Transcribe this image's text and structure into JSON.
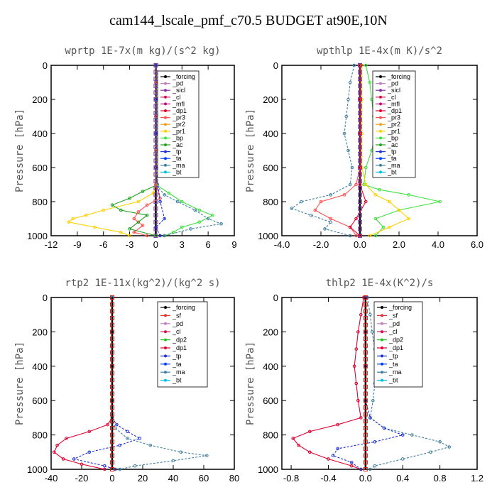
{
  "page_title": "cam144_lscale_pmf_c70.5  BUDGET at90E,10N",
  "colors": {
    "forcing": "#000000",
    "pd": "#c080c0",
    "sicl": "#8030a0",
    "sf": "#e03030",
    "cl": "#d01050",
    "mfl": "#c01080",
    "dp1": "#e00030",
    "dp2": "#20c020",
    "pr3": "#ff5050",
    "pr2": "#f0a020",
    "pr1": "#ffd000",
    "bp": "#40e040",
    "ac": "#20a020",
    "tp": "#2030d0",
    "ta": "#0040ff",
    "ma": "#4080a0",
    "bt": "#00c0e0"
  },
  "chart_data": [
    {
      "type": "line",
      "title": "wprtp   1E-7x(m kg)/(s^2 kg)",
      "ylabel": "Pressure [hPa]",
      "xlim": [
        -12,
        9
      ],
      "xticks": [
        -12,
        -9,
        -6,
        -3,
        0,
        3,
        6,
        9
      ],
      "xtick_labels": [
        "-12",
        "-9",
        "-6",
        "-3",
        "0",
        "3",
        "6",
        "9"
      ],
      "ylim": [
        1000,
        0
      ],
      "yticks": [
        0,
        200,
        400,
        600,
        800,
        1000
      ],
      "ytick_labels": [
        "0",
        "200",
        "400",
        "600",
        "800",
        "1000"
      ],
      "legend": [
        "_forcing",
        "_pd",
        "_sicl",
        "_cl",
        "_mfl",
        "_dp1",
        "_pr3",
        "_pr2",
        "_pr1",
        "_bp",
        "_ac",
        "_tp",
        "_ta",
        "_ma",
        "_bt"
      ],
      "series": [
        {
          "name": "_forcing",
          "key": "forcing",
          "p": [
            0,
            1000
          ],
          "x": [
            0,
            0
          ]
        },
        {
          "name": "_pr1",
          "key": "pr1",
          "p": [
            0,
            100,
            200,
            300,
            400,
            500,
            600,
            700,
            750,
            800,
            850,
            880,
            900,
            920,
            950,
            980,
            1000
          ],
          "x": [
            0,
            0,
            0,
            0,
            0,
            0,
            0,
            0,
            -0.3,
            -2,
            -6,
            -8,
            -9.5,
            -10,
            -7,
            -4,
            -3
          ]
        },
        {
          "name": "_ac",
          "key": "ac",
          "p": [
            0,
            100,
            200,
            300,
            400,
            500,
            600,
            700,
            740,
            780,
            820,
            850,
            880,
            920,
            960,
            1000
          ],
          "x": [
            0,
            0,
            0,
            0,
            0,
            0,
            0,
            0.2,
            -1.5,
            -3,
            -5,
            -4,
            -1,
            -2,
            -3,
            0
          ]
        },
        {
          "name": "_bp",
          "key": "bp",
          "p": [
            0,
            100,
            200,
            300,
            400,
            500,
            600,
            700,
            750,
            800,
            850,
            880,
            920,
            950,
            980,
            1000
          ],
          "x": [
            0,
            0,
            0,
            0,
            0,
            0,
            0,
            0,
            1.5,
            3,
            5,
            6.5,
            5,
            3,
            2,
            1
          ]
        },
        {
          "name": "_ma",
          "key": "ma",
          "p": [
            0,
            100,
            200,
            300,
            400,
            500,
            600,
            700,
            760,
            800,
            850,
            900,
            930,
            960,
            1000
          ],
          "x": [
            0,
            0,
            0,
            0,
            0,
            0,
            0,
            0,
            1,
            2.5,
            4.5,
            6,
            7.5,
            4,
            1
          ]
        },
        {
          "name": "_pr3",
          "key": "pr3",
          "p": [
            0,
            100,
            200,
            300,
            400,
            500,
            600,
            700,
            780,
            820,
            860,
            900,
            940,
            980,
            1000
          ],
          "x": [
            0,
            0,
            0,
            0,
            0,
            0,
            0,
            0,
            0.5,
            -1,
            -2,
            -2.5,
            -1.5,
            -2.5,
            -1
          ]
        },
        {
          "name": "_tp",
          "key": "tp",
          "p": [
            0,
            200,
            400,
            600,
            800,
            900,
            950,
            1000
          ],
          "x": [
            0,
            0,
            0,
            0,
            0.5,
            1,
            0,
            0.5
          ]
        }
      ]
    },
    {
      "type": "line",
      "title": "wpthlp   1E-4x(m K)/s^2",
      "ylabel": "Pressure [hPa]",
      "xlim": [
        -4.0,
        6.0
      ],
      "xticks": [
        -4.0,
        -2.0,
        0.0,
        2.0,
        4.0,
        6.0
      ],
      "xtick_labels": [
        "-4.0",
        "-2.0",
        "0.0",
        "2.0",
        "4.0",
        "6.0"
      ],
      "ylim": [
        1000,
        0
      ],
      "yticks": [
        0,
        200,
        400,
        600,
        800,
        1000
      ],
      "ytick_labels": [
        "0",
        "200",
        "400",
        "600",
        "800",
        "1000"
      ],
      "legend": [
        "_forcing",
        "_pd",
        "_sicl",
        "_cl",
        "_mfl",
        "_dp1",
        "_pr3",
        "_pr2",
        "_pr1",
        "_bp",
        "_ac",
        "_tp",
        "_ta",
        "_ma",
        "_bt"
      ],
      "series": [
        {
          "name": "_forcing",
          "key": "forcing",
          "p": [
            0,
            1000
          ],
          "x": [
            0,
            0
          ]
        },
        {
          "name": "_bp",
          "key": "bp",
          "p": [
            0,
            100,
            200,
            300,
            400,
            500,
            600,
            700,
            730,
            760,
            800,
            850,
            900,
            950,
            1000
          ],
          "x": [
            0.3,
            0.5,
            0.6,
            0.7,
            0.8,
            0.6,
            0.3,
            0.2,
            1.0,
            2.5,
            4.1,
            2.0,
            0.8,
            1.2,
            0.8
          ]
        },
        {
          "name": "_ma",
          "key": "ma",
          "p": [
            0,
            100,
            200,
            300,
            400,
            500,
            600,
            700,
            760,
            800,
            840,
            880,
            920,
            960,
            1000
          ],
          "x": [
            -0.3,
            -0.5,
            -0.6,
            -0.7,
            -0.8,
            -0.6,
            -0.4,
            -0.5,
            -1.5,
            -3.0,
            -3.5,
            -2.5,
            -1.5,
            -1.8,
            -0.5
          ]
        },
        {
          "name": "_pr1",
          "key": "pr1",
          "p": [
            0,
            200,
            400,
            600,
            700,
            760,
            800,
            850,
            900,
            950,
            1000
          ],
          "x": [
            0.1,
            0.1,
            0.1,
            0.1,
            0.3,
            0.8,
            1.5,
            2.0,
            2.5,
            1.5,
            0.5
          ]
        },
        {
          "name": "_pr3",
          "key": "pr3",
          "p": [
            0,
            200,
            400,
            600,
            700,
            760,
            800,
            850,
            900,
            950,
            1000
          ],
          "x": [
            0,
            0,
            0,
            0,
            -0.2,
            -0.8,
            -2.0,
            -2.3,
            -1.5,
            -0.5,
            -0.2
          ]
        },
        {
          "name": "_dp1",
          "key": "dp1",
          "p": [
            0,
            200,
            400,
            600,
            700,
            800,
            900,
            950,
            1000
          ],
          "x": [
            0,
            0,
            0,
            0,
            0,
            0.3,
            -0.2,
            -0.5,
            0
          ]
        }
      ]
    },
    {
      "type": "line",
      "title": "rtp2   1E-11x(kg^2)/(kg^2 s)",
      "ylabel": "Pressure [hPa]",
      "xlim": [
        -40,
        80
      ],
      "xticks": [
        -40,
        -20,
        0,
        20,
        40,
        60,
        80
      ],
      "xtick_labels": [
        "-40",
        "-20",
        "0",
        "20",
        "40",
        "60",
        "80"
      ],
      "ylim": [
        1000,
        0
      ],
      "yticks": [
        0,
        200,
        400,
        600,
        800,
        1000
      ],
      "ytick_labels": [
        "0",
        "200",
        "400",
        "600",
        "800",
        "1000"
      ],
      "legend": [
        "_forcing",
        "_sf",
        "_pd",
        "_cl",
        "_dp2",
        "_dp1",
        "_tp",
        "_ta",
        "_ma",
        "_bt"
      ],
      "series": [
        {
          "name": "_dp1",
          "key": "dp1",
          "p": [
            0,
            200,
            400,
            600,
            700,
            740,
            780,
            820,
            860,
            900,
            940,
            970,
            1000
          ],
          "x": [
            0,
            0,
            0,
            0,
            0,
            -3,
            -15,
            -30,
            -36,
            -38,
            -32,
            -20,
            -5
          ]
        },
        {
          "name": "_tp",
          "key": "tp",
          "p": [
            0,
            200,
            400,
            600,
            700,
            740,
            780,
            820,
            860,
            900,
            940,
            980,
            1000
          ],
          "x": [
            0,
            0,
            0,
            0,
            0,
            3,
            10,
            18,
            5,
            -15,
            -25,
            -5,
            2
          ]
        },
        {
          "name": "_ma",
          "key": "ma",
          "p": [
            0,
            200,
            400,
            600,
            700,
            760,
            820,
            860,
            900,
            920,
            950,
            980,
            1000
          ],
          "x": [
            0,
            0,
            0,
            0,
            0,
            2,
            10,
            25,
            45,
            62,
            40,
            15,
            5
          ]
        },
        {
          "name": "_forcing",
          "key": "forcing",
          "p": [
            0,
            1000
          ],
          "x": [
            0,
            0
          ]
        }
      ]
    },
    {
      "type": "line",
      "title": "thlp2   1E-4x(K^2)/s",
      "ylabel": "Pressure [hPa]",
      "xlim": [
        -0.9,
        1.2
      ],
      "xticks": [
        -0.8,
        -0.4,
        0.0,
        0.4,
        0.8,
        1.2
      ],
      "xtick_labels": [
        "-0.8",
        "-0.4",
        "0.0",
        "0.4",
        "0.8",
        "1.2"
      ],
      "ylim": [
        1000,
        0
      ],
      "yticks": [
        0,
        200,
        400,
        600,
        800,
        1000
      ],
      "ytick_labels": [
        "0",
        "200",
        "400",
        "600",
        "800",
        "1000"
      ],
      "legend": [
        "_forcing",
        "_sf",
        "_pd",
        "_cl",
        "_dp2",
        "_dp1",
        "_tp",
        "_ta",
        "_ma",
        "_bt"
      ],
      "series": [
        {
          "name": "_dp1",
          "key": "dp1",
          "p": [
            0,
            100,
            200,
            300,
            400,
            500,
            600,
            700,
            740,
            780,
            820,
            860,
            900,
            940,
            980,
            1000
          ],
          "x": [
            -0.02,
            -0.05,
            -0.08,
            -0.1,
            -0.12,
            -0.1,
            -0.08,
            -0.05,
            -0.3,
            -0.6,
            -0.78,
            -0.72,
            -0.6,
            -0.4,
            -0.15,
            -0.05
          ]
        },
        {
          "name": "_ma",
          "key": "ma",
          "p": [
            0,
            100,
            200,
            300,
            400,
            500,
            600,
            700,
            760,
            800,
            840,
            870,
            900,
            940,
            980,
            1000
          ],
          "x": [
            0.02,
            0.05,
            0.07,
            0.1,
            0.12,
            0.1,
            0.08,
            0.05,
            0.2,
            0.5,
            0.8,
            0.9,
            0.7,
            0.4,
            0.1,
            0.05
          ]
        },
        {
          "name": "_tp",
          "key": "tp",
          "p": [
            0,
            200,
            400,
            600,
            700,
            760,
            800,
            840,
            880,
            920,
            960,
            1000
          ],
          "x": [
            0,
            0,
            0,
            0,
            0.05,
            0.2,
            0.4,
            0.1,
            -0.3,
            -0.35,
            -0.15,
            -0.05
          ]
        },
        {
          "name": "_forcing",
          "key": "forcing",
          "p": [
            0,
            1000
          ],
          "x": [
            0,
            0
          ]
        }
      ]
    }
  ]
}
